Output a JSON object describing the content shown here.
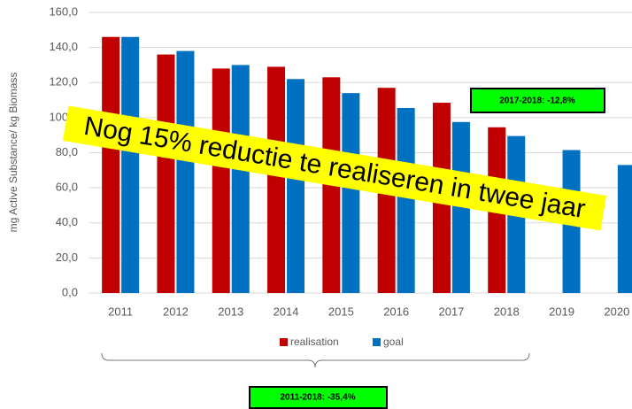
{
  "chart_data": {
    "type": "bar",
    "ylabel": "mg Active Substance/ kg Biomass",
    "categories": [
      "2011",
      "2012",
      "2013",
      "2014",
      "2015",
      "2016",
      "2017",
      "2018",
      "2019",
      "2020"
    ],
    "series": [
      {
        "name": "realisation",
        "color": "#c00000",
        "values": [
          146,
          136,
          128,
          129,
          123,
          117,
          108.5,
          94.5,
          null,
          null
        ]
      },
      {
        "name": "goal",
        "color": "#0070c0",
        "values": [
          146,
          138,
          130,
          122,
          114,
          105.5,
          97.5,
          89.5,
          81.5,
          73
        ]
      }
    ],
    "ylim": [
      0,
      160
    ],
    "yticks": [
      {
        "value": 0,
        "label": "0,0"
      },
      {
        "value": 20,
        "label": "20,0"
      },
      {
        "value": 40,
        "label": "40,0"
      },
      {
        "value": 60,
        "label": "60,0"
      },
      {
        "value": 80,
        "label": "80,0"
      },
      {
        "value": 100,
        "label": "100,0"
      },
      {
        "value": 120,
        "label": "120,0"
      },
      {
        "value": 140,
        "label": "140,0"
      },
      {
        "value": 160,
        "label": "160,0"
      }
    ],
    "grid": true,
    "annotations": [
      "Nog 15% reductie te realiseren in twee jaar",
      "2017-2018:  -12,8%",
      "2011-2018:  -35,4%"
    ]
  }
}
